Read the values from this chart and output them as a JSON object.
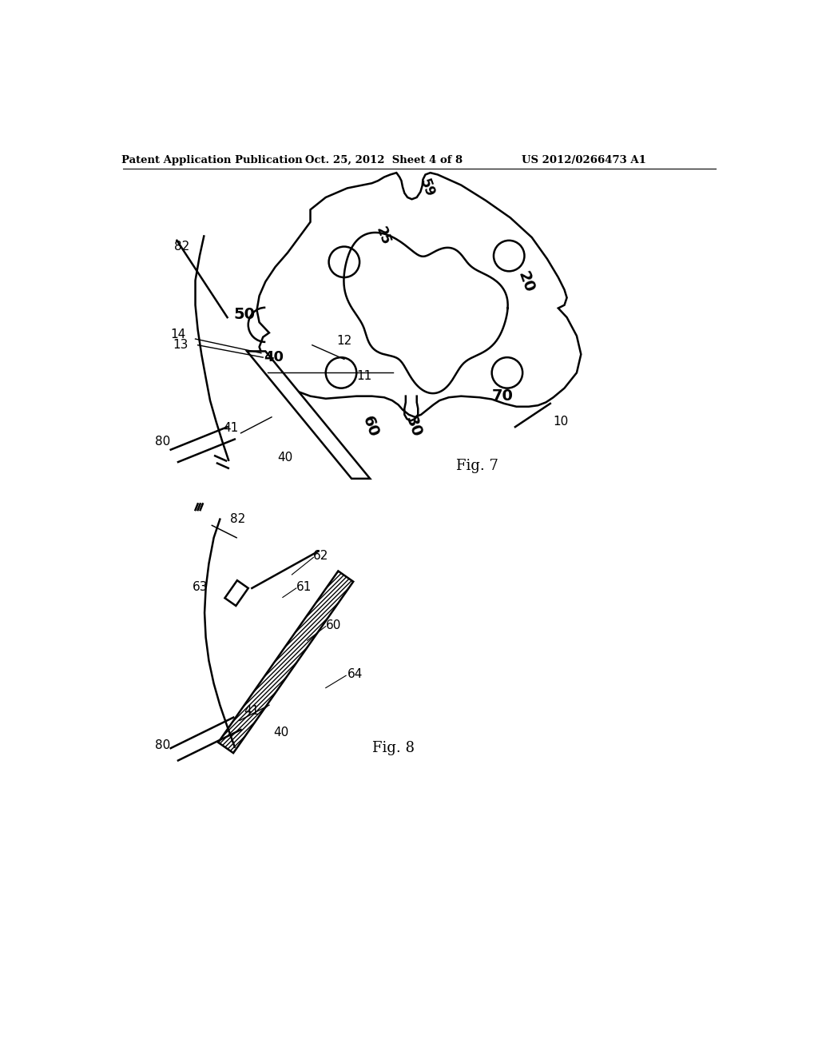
{
  "title_left": "Patent Application Publication",
  "title_mid": "Oct. 25, 2012  Sheet 4 of 8",
  "title_right": "US 2012/0266473 A1",
  "fig7_label": "Fig. 7",
  "fig8_label": "Fig. 8",
  "bg_color": "#ffffff",
  "line_color": "#000000"
}
